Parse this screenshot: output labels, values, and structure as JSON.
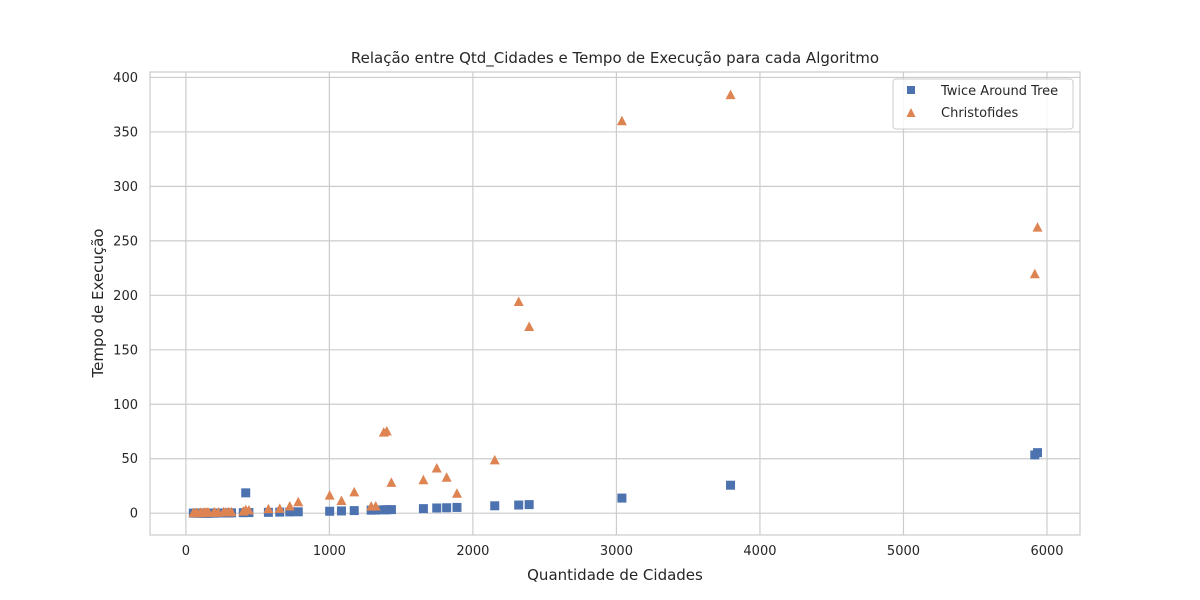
{
  "chart_data": {
    "type": "scatter",
    "title": "Relação entre Qtd_Cidades e Tempo de Execução para cada Algoritmo",
    "xlabel": "Quantidade de Cidades",
    "ylabel": "Tempo de Execução",
    "xlim": [
      -250,
      6230
    ],
    "ylim": [
      -20,
      405
    ],
    "xticks": [
      0,
      1000,
      2000,
      3000,
      4000,
      5000,
      6000
    ],
    "yticks": [
      0,
      50,
      100,
      150,
      200,
      250,
      300,
      350,
      400
    ],
    "grid": true,
    "legend_position": "top-right",
    "series": [
      {
        "name": "Twice Around Tree",
        "marker": "square",
        "color": "#4c72b0",
        "points": [
          [
            52,
            0.1
          ],
          [
            70,
            0.1
          ],
          [
            76,
            0.1
          ],
          [
            99,
            0.1
          ],
          [
            100,
            0.1
          ],
          [
            105,
            0.1
          ],
          [
            107,
            0.1
          ],
          [
            124,
            0.1
          ],
          [
            127,
            0.1
          ],
          [
            130,
            0.1
          ],
          [
            136,
            0.1
          ],
          [
            144,
            0.1
          ],
          [
            150,
            0.1
          ],
          [
            152,
            0.1
          ],
          [
            159,
            0.1
          ],
          [
            195,
            0.1
          ],
          [
            200,
            0.1
          ],
          [
            202,
            0.2
          ],
          [
            225,
            0.2
          ],
          [
            226,
            0.2
          ],
          [
            262,
            0.2
          ],
          [
            264,
            0.2
          ],
          [
            280,
            0.3
          ],
          [
            299,
            0.3
          ],
          [
            318,
            0.3
          ],
          [
            400,
            0.5
          ],
          [
            417,
            18.7
          ],
          [
            439,
            0.6
          ],
          [
            575,
            0.8
          ],
          [
            654,
            1.0
          ],
          [
            724,
            1.2
          ],
          [
            783,
            1.3
          ],
          [
            1002,
            1.8
          ],
          [
            1084,
            2.1
          ],
          [
            1173,
            2.4
          ],
          [
            1291,
            2.8
          ],
          [
            1323,
            2.9
          ],
          [
            1379,
            3.1
          ],
          [
            1400,
            3.2
          ],
          [
            1432,
            3.3
          ],
          [
            1655,
            4.2
          ],
          [
            1748,
            4.8
          ],
          [
            1817,
            5.0
          ],
          [
            1889,
            5.3
          ],
          [
            2152,
            6.8
          ],
          [
            2319,
            7.5
          ],
          [
            2392,
            7.9
          ],
          [
            3038,
            13.9
          ],
          [
            3795,
            25.7
          ],
          [
            5915,
            53.5
          ],
          [
            5934,
            55.6
          ]
        ]
      },
      {
        "name": "Christofides",
        "marker": "triangle",
        "color": "#dd8452",
        "points": [
          [
            52,
            0.1
          ],
          [
            70,
            0.1
          ],
          [
            76,
            0.1
          ],
          [
            99,
            0.1
          ],
          [
            100,
            0.1
          ],
          [
            105,
            0.1
          ],
          [
            107,
            0.1
          ],
          [
            124,
            0.2
          ],
          [
            127,
            0.2
          ],
          [
            130,
            0.2
          ],
          [
            136,
            0.2
          ],
          [
            144,
            0.2
          ],
          [
            150,
            0.2
          ],
          [
            152,
            0.2
          ],
          [
            159,
            0.3
          ],
          [
            195,
            0.4
          ],
          [
            200,
            0.4
          ],
          [
            202,
            0.4
          ],
          [
            225,
            0.5
          ],
          [
            226,
            0.5
          ],
          [
            262,
            0.6
          ],
          [
            264,
            0.6
          ],
          [
            280,
            0.7
          ],
          [
            299,
            0.8
          ],
          [
            318,
            0.9
          ],
          [
            400,
            1.5
          ],
          [
            417,
            2.8
          ],
          [
            439,
            2.5
          ],
          [
            575,
            3.6
          ],
          [
            654,
            4.0
          ],
          [
            724,
            6.2
          ],
          [
            783,
            10.1
          ],
          [
            1002,
            16.1
          ],
          [
            1084,
            11.2
          ],
          [
            1173,
            19.1
          ],
          [
            1291,
            6.0
          ],
          [
            1323,
            6.2
          ],
          [
            1379,
            74.0
          ],
          [
            1400,
            75.0
          ],
          [
            1432,
            27.8
          ],
          [
            1655,
            30.3
          ],
          [
            1748,
            41.0
          ],
          [
            1817,
            32.5
          ],
          [
            1889,
            17.9
          ],
          [
            2152,
            48.5
          ],
          [
            2319,
            193.9
          ],
          [
            2392,
            170.9
          ],
          [
            3038,
            359.8
          ],
          [
            3795,
            383.8
          ],
          [
            5915,
            219.3
          ],
          [
            5934,
            262.1
          ]
        ]
      }
    ]
  }
}
